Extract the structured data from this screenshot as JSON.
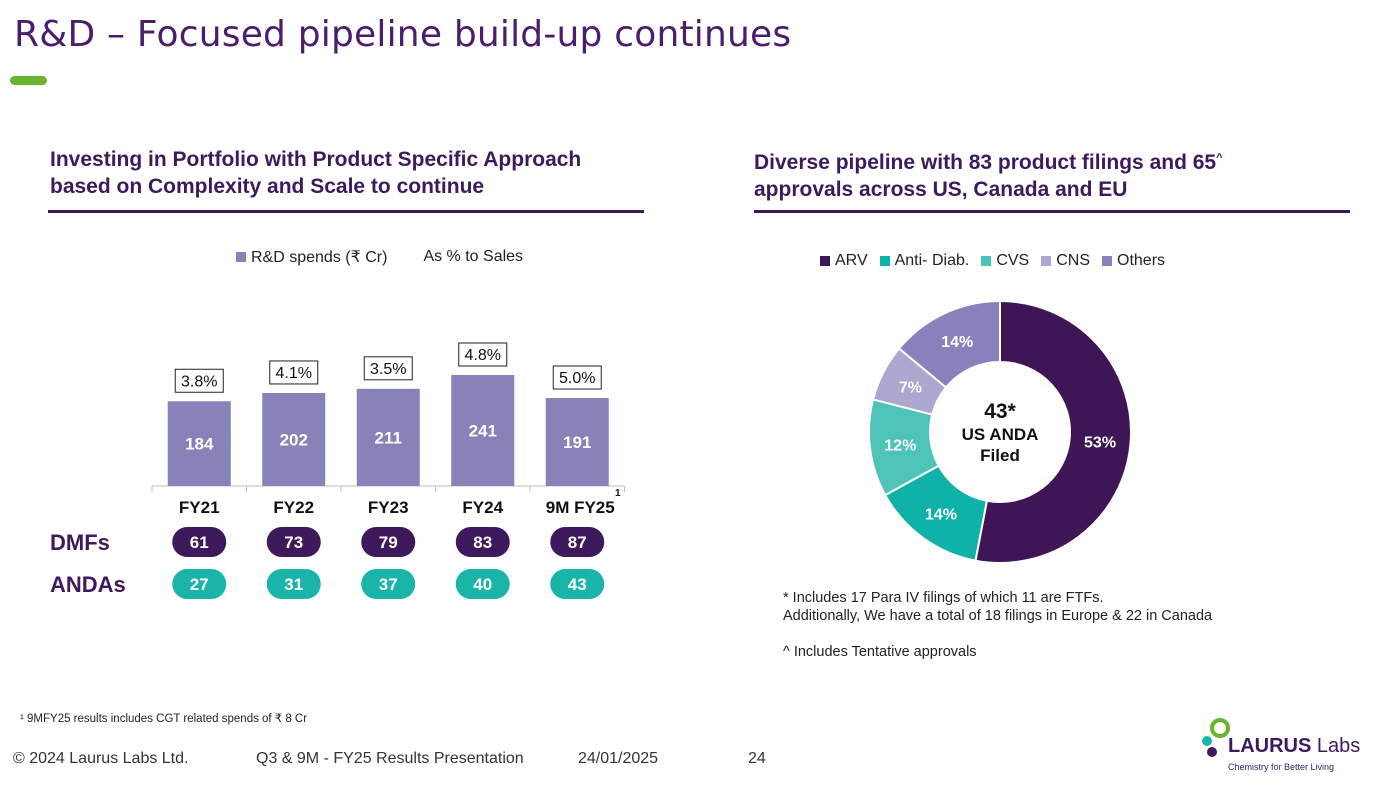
{
  "slide": {
    "title": "R&D – Focused pipeline build-up continues",
    "page_number": "24"
  },
  "left": {
    "heading_line1": "Investing in Portfolio with Product Specific Approach",
    "heading_line2": "based on Complexity and Scale to continue",
    "legend_spends": "R&D spends (₹ Cr)",
    "legend_pct": "As % to Sales",
    "dmfs_label": "DMFs",
    "andas_label": "ANDAs",
    "footnote_marker": "1"
  },
  "right": {
    "heading_line1": "Diverse pipeline with 83 product filings and 65",
    "heading_caret": "^",
    "heading_line2": "approvals across US, Canada and EU",
    "center_value": "43*",
    "center_line1": "US ANDA",
    "center_line2": "Filed",
    "note1": "* Includes 17 Para IV filings of which 11 are FTFs.",
    "note2": "Additionally, We have a total of 18 filings in Europe & 22 in Canada",
    "note3": "^ Includes Tentative approvals"
  },
  "footer": {
    "copyright": "© 2024  Laurus Labs Ltd.",
    "presentation": "Q3 & 9M - FY25  Results Presentation",
    "date": "24/01/2025",
    "footnote": "¹ 9MFY25 results includes CGT related spends of ₹ 8 Cr"
  },
  "logo": {
    "name_bold": "LAURUS",
    "name_light": " Labs",
    "tagline": "Chemistry for Better Living"
  },
  "colors": {
    "brand_purple": "#3e1a5c",
    "bar": "#8783b8",
    "teal": "#1ab5a8",
    "dmf_pill": "#3e1a5c",
    "accent_green": "#6ab42d"
  },
  "chart_data": [
    {
      "type": "bar",
      "categories": [
        "FY21",
        "FY22",
        "FY23",
        "FY24",
        "9M FY25"
      ],
      "series": [
        {
          "name": "R&D spends (₹ Cr)",
          "values": [
            184,
            202,
            211,
            241,
            191
          ]
        },
        {
          "name": "As % to Sales",
          "values": [
            "3.8%",
            "4.1%",
            "3.5%",
            "4.8%",
            "5.0%"
          ]
        }
      ],
      "dmfs": [
        61,
        73,
        79,
        83,
        87
      ],
      "andas": [
        27,
        31,
        37,
        40,
        43
      ],
      "ylim": [
        0,
        260
      ]
    },
    {
      "type": "pie",
      "legend": [
        "ARV",
        "Anti- Diab.",
        "CVS",
        "CNS",
        "Others"
      ],
      "values": [
        53,
        14,
        12,
        7,
        14
      ],
      "labels": [
        "53%",
        "14%",
        "12%",
        "7%",
        "14%"
      ],
      "colors": [
        "#3e1656",
        "#0fb2a6",
        "#4ec4b8",
        "#aba7cf",
        "#8782bb"
      ],
      "legend_position": "top"
    }
  ]
}
